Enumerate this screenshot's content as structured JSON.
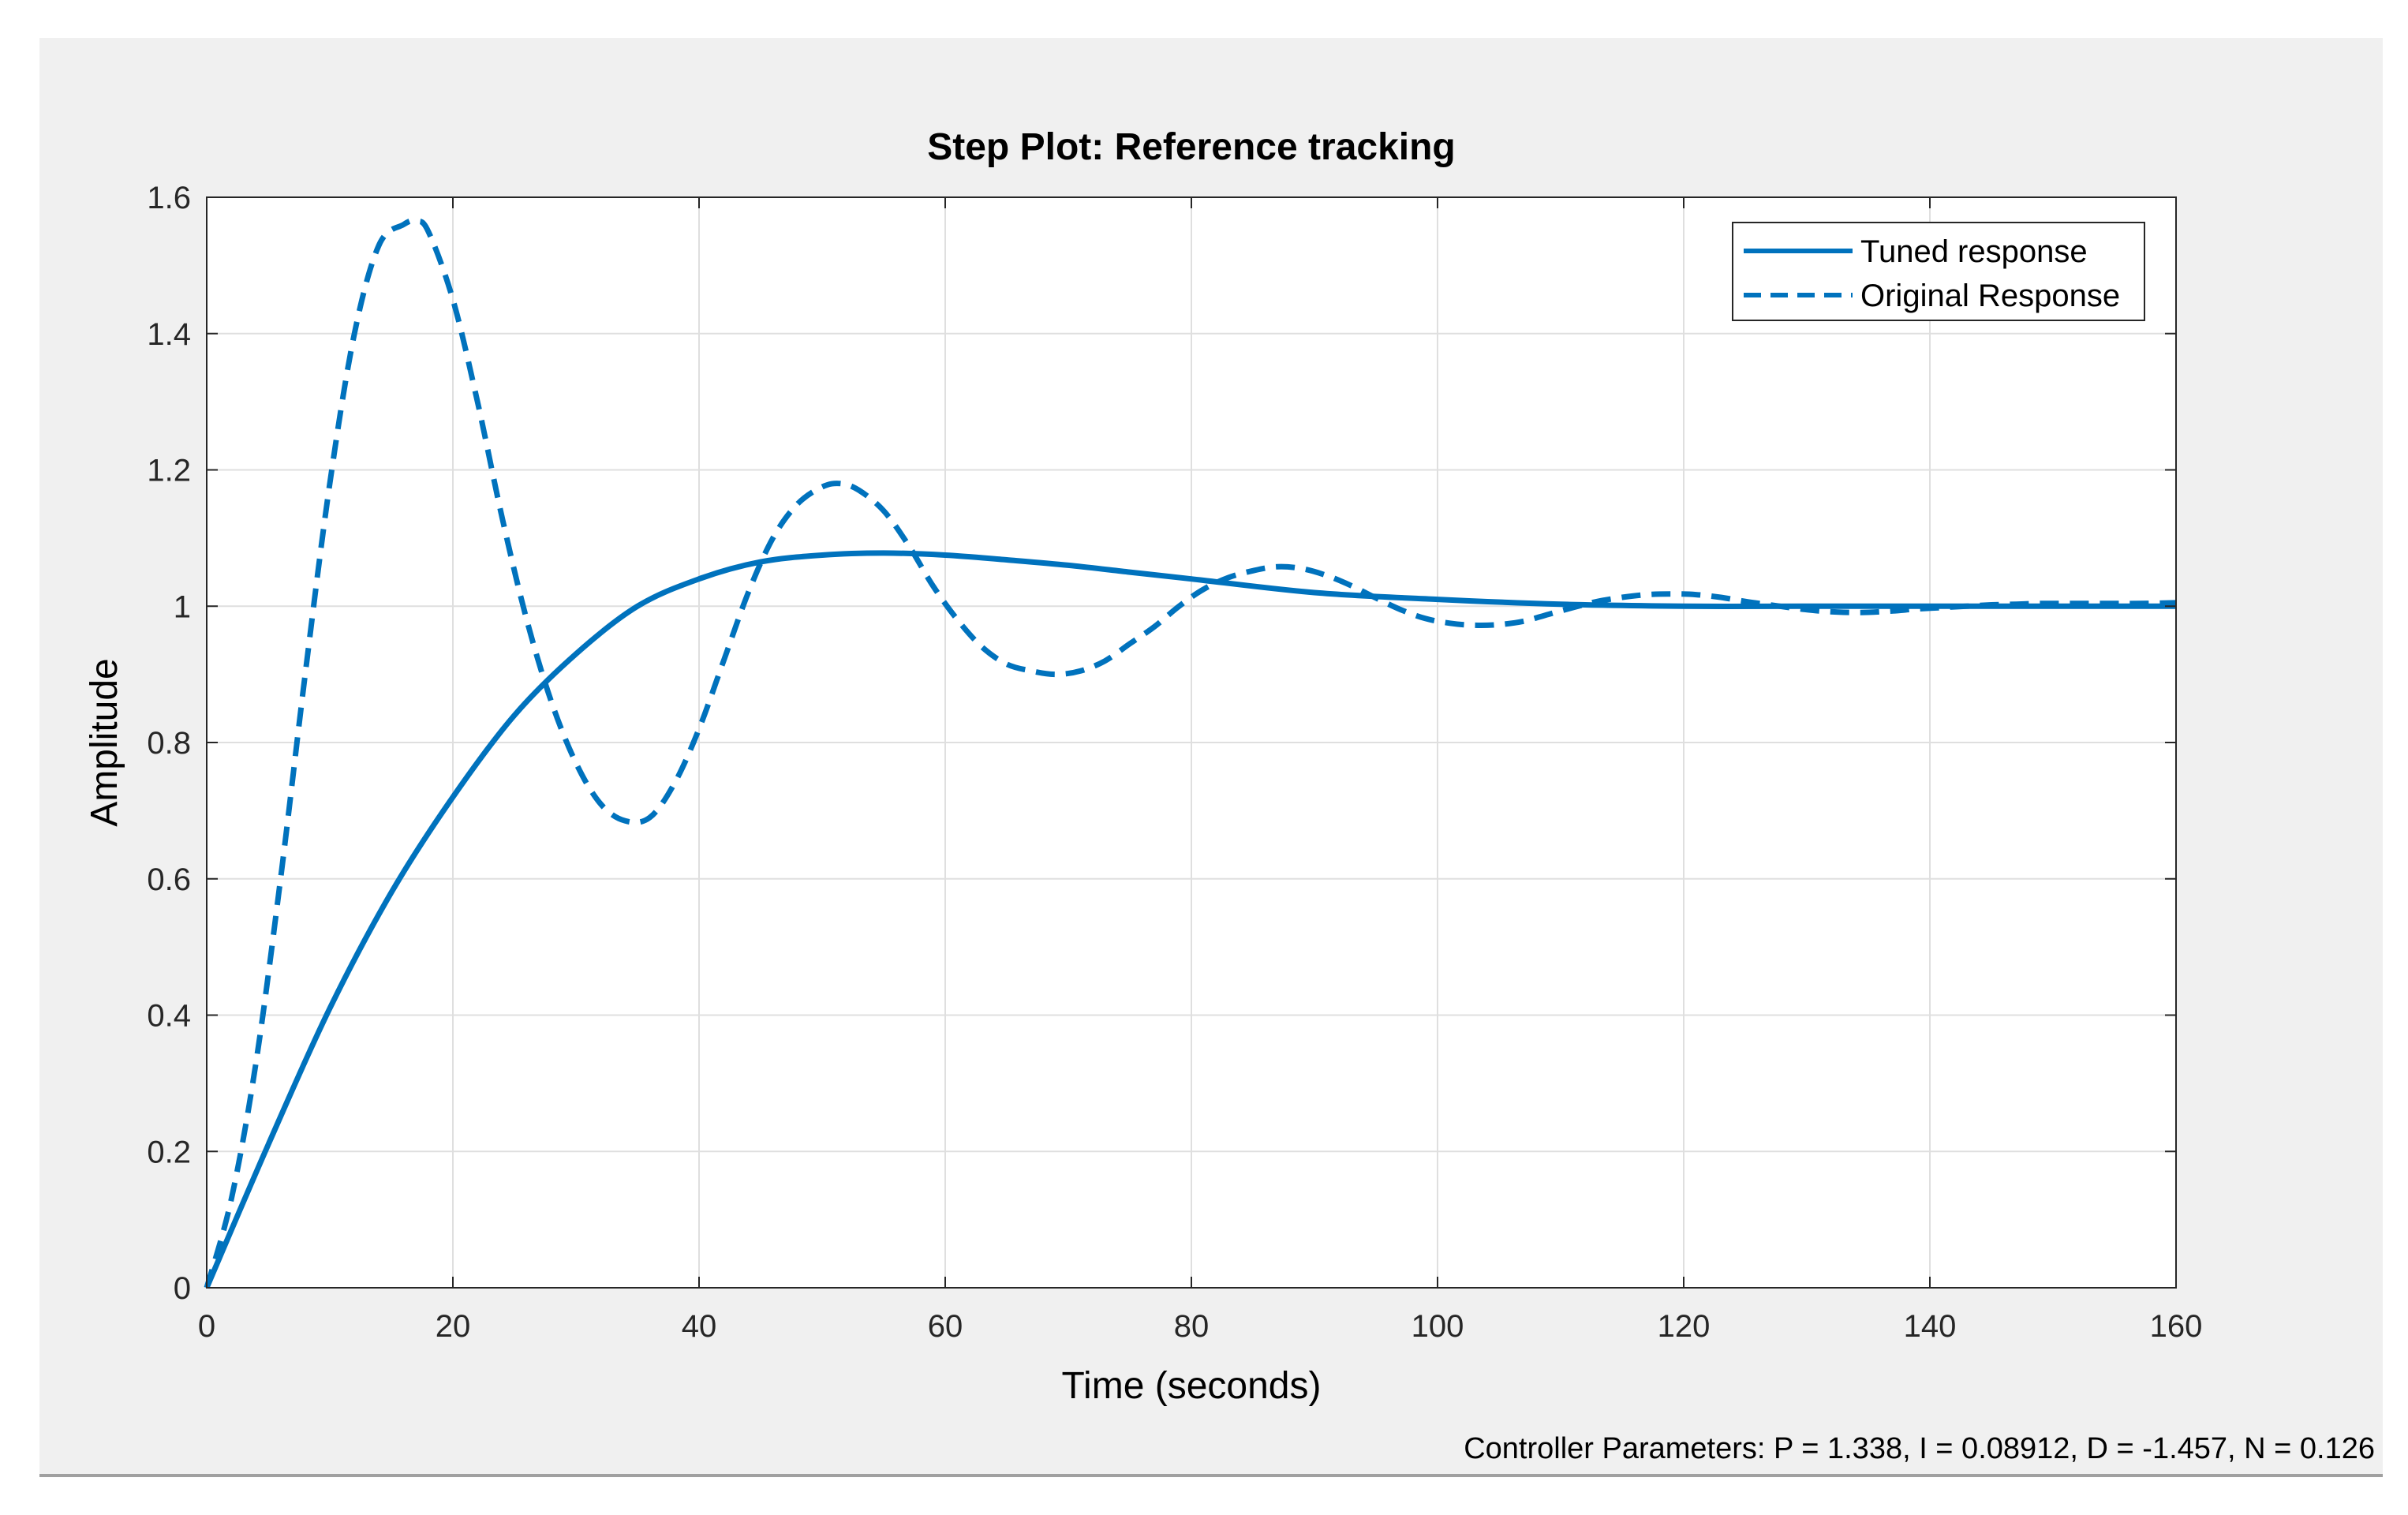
{
  "chart_data": {
    "type": "line",
    "title": "Step Plot: Reference tracking",
    "xlabel": "Time (seconds)",
    "ylabel": "Amplitude",
    "xlim": [
      0,
      160
    ],
    "ylim": [
      0,
      1.6
    ],
    "xticks": [
      0,
      20,
      40,
      60,
      80,
      100,
      120,
      140,
      160
    ],
    "yticks": [
      0,
      0.2,
      0.4,
      0.6,
      0.8,
      1,
      1.2,
      1.4,
      1.6
    ],
    "xtick_labels": [
      "0",
      "20",
      "40",
      "60",
      "80",
      "100",
      "120",
      "140",
      "160"
    ],
    "ytick_labels": [
      "0",
      "0.2",
      "0.4",
      "0.6",
      "0.8",
      "1",
      "1.2",
      "1.4",
      "1.6"
    ],
    "grid": true,
    "legend_position": "top-right",
    "series": [
      {
        "name": "Tuned response",
        "style": "solid",
        "color": "#0072bd",
        "x": [
          0,
          5,
          10,
          15,
          20,
          25,
          30,
          35,
          40,
          45,
          50,
          55,
          60,
          65,
          70,
          75,
          80,
          90,
          100,
          110,
          120,
          130,
          140,
          150,
          160
        ],
        "y": [
          0,
          0.21,
          0.41,
          0.58,
          0.72,
          0.84,
          0.93,
          1.0,
          1.04,
          1.065,
          1.075,
          1.078,
          1.075,
          1.068,
          1.06,
          1.05,
          1.04,
          1.02,
          1.01,
          1.003,
          1.0,
          1.0,
          1.0,
          1.0,
          1.0
        ]
      },
      {
        "name": "Original Response",
        "style": "dashed",
        "color": "#0072bd",
        "x": [
          0,
          2,
          4,
          6,
          8,
          10,
          12,
          14,
          16,
          17,
          18,
          20,
          22,
          24,
          26,
          28,
          30,
          32,
          34,
          36,
          38,
          40,
          42,
          44,
          46,
          48,
          50,
          51.5,
          53,
          55,
          57,
          59,
          61,
          63,
          65,
          67,
          69,
          71,
          73,
          75,
          77,
          79,
          81,
          83,
          85,
          87,
          89,
          91,
          93,
          95,
          97,
          99,
          101,
          103,
          105,
          107,
          109,
          111,
          113,
          115,
          117,
          119,
          121,
          123,
          125,
          127,
          129,
          131,
          133,
          135,
          137,
          139,
          141,
          143,
          145,
          147,
          149,
          151,
          153,
          155,
          157,
          160
        ],
        "y": [
          0,
          0.13,
          0.33,
          0.6,
          0.9,
          1.18,
          1.4,
          1.53,
          1.56,
          1.565,
          1.55,
          1.45,
          1.3,
          1.13,
          0.98,
          0.86,
          0.77,
          0.71,
          0.685,
          0.69,
          0.74,
          0.82,
          0.92,
          1.02,
          1.1,
          1.15,
          1.175,
          1.18,
          1.17,
          1.14,
          1.09,
          1.03,
          0.98,
          0.94,
          0.915,
          0.905,
          0.9,
          0.905,
          0.92,
          0.945,
          0.97,
          1.0,
          1.025,
          1.042,
          1.052,
          1.058,
          1.055,
          1.045,
          1.03,
          1.012,
          0.995,
          0.982,
          0.975,
          0.972,
          0.973,
          0.978,
          0.988,
          0.998,
          1.007,
          1.013,
          1.017,
          1.018,
          1.017,
          1.013,
          1.007,
          1.002,
          0.997,
          0.993,
          0.991,
          0.991,
          0.993,
          0.996,
          0.998,
          1.0,
          1.002,
          1.003,
          1.004,
          1.004,
          1.004,
          1.004,
          1.004,
          1.005
        ]
      }
    ],
    "annotation": "Controller Parameters: P = 1.338, I = 0.08912, D = -1.457, N = 0.126"
  },
  "colors": {
    "window_bg": "#f0f0f0",
    "plot_bg": "#ffffff",
    "grid": "#dfdfdf",
    "axes": "#262626",
    "line": "#0072bd"
  }
}
